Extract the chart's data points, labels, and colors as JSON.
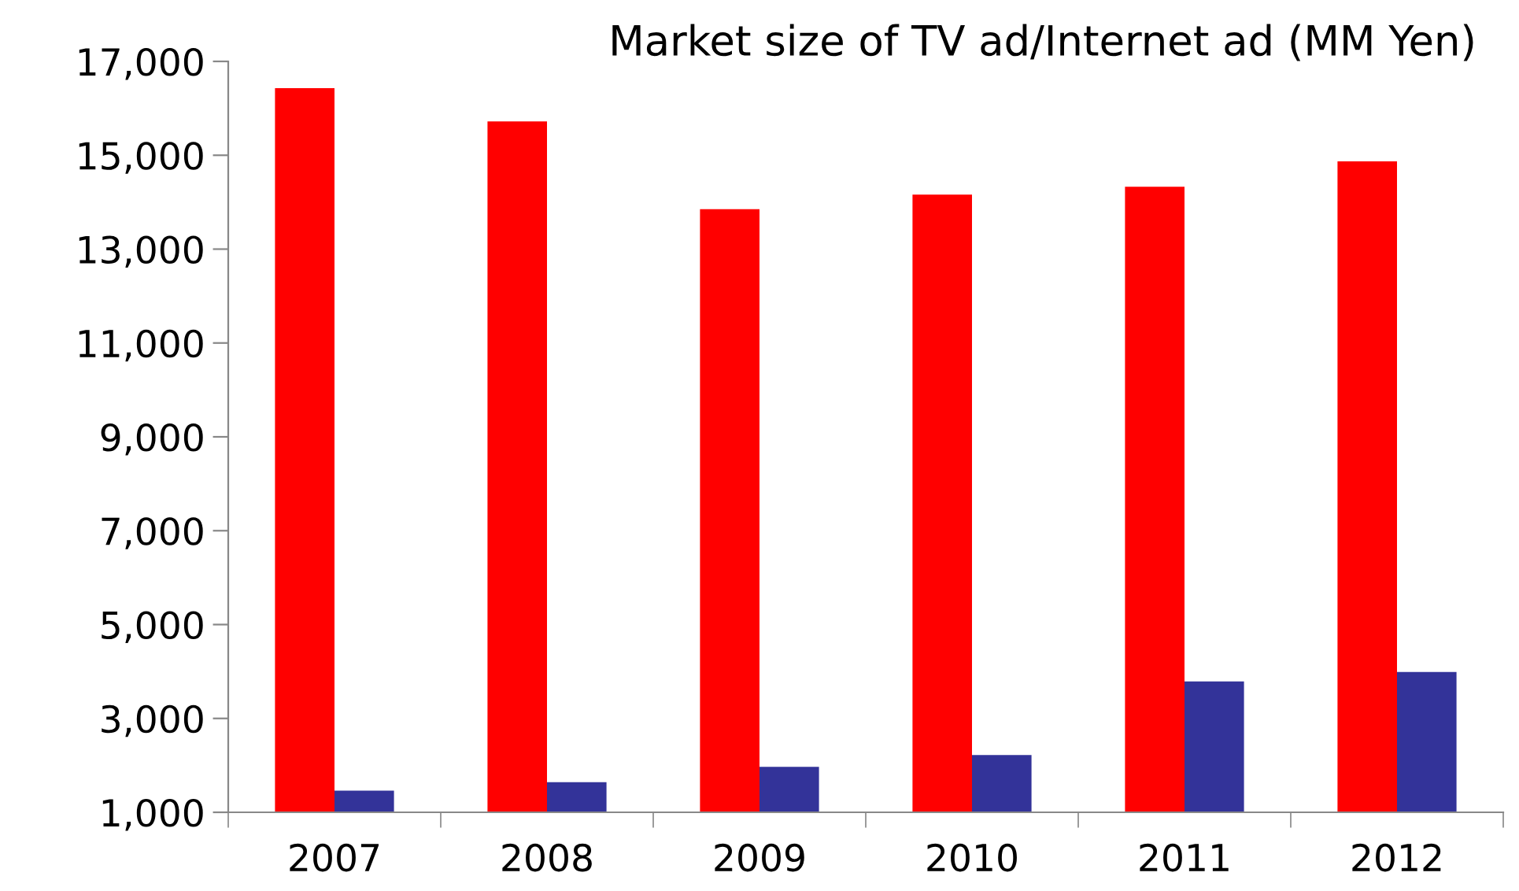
{
  "chart_data": {
    "type": "bar",
    "title": "Market size of TV ad/Internet ad (MM Yen)",
    "categories": [
      "2007",
      "2008",
      "2009",
      "2010",
      "2011",
      "2012"
    ],
    "series": [
      {
        "color": "#ff0000",
        "values": [
          16430,
          15720,
          13850,
          14160,
          14330,
          14870
        ]
      },
      {
        "color": "#333399",
        "values": [
          1460,
          1640,
          1970,
          2220,
          3790,
          3990
        ]
      }
    ],
    "ylim": [
      1000,
      17000
    ],
    "yticks": [
      {
        "value": 1000,
        "label": "1,000"
      },
      {
        "value": 3000,
        "label": "3,000"
      },
      {
        "value": 5000,
        "label": "5,000"
      },
      {
        "value": 7000,
        "label": "7,000"
      },
      {
        "value": 9000,
        "label": "9,000"
      },
      {
        "value": 11000,
        "label": "11,000"
      },
      {
        "value": 13000,
        "label": "13,000"
      },
      {
        "value": 15000,
        "label": "15,000"
      },
      {
        "value": 17000,
        "label": "17,000"
      }
    ],
    "grid": false
  }
}
